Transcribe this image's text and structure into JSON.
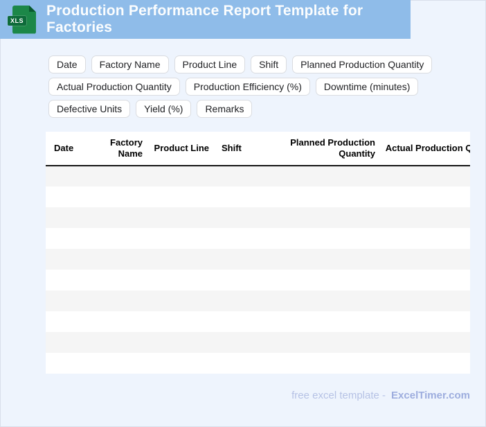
{
  "banner": {
    "title": "Production Performance Report Template for Factories",
    "icon_label": "XLS"
  },
  "chips": [
    "Date",
    "Factory Name",
    "Product Line",
    "Shift",
    "Planned Production Quantity",
    "Actual Production Quantity",
    "Production Efficiency (%)",
    "Downtime (minutes)",
    "Defective Units",
    "Yield (%)",
    "Remarks"
  ],
  "table": {
    "columns": [
      {
        "label": "Date",
        "align": "left"
      },
      {
        "label": "Factory Name",
        "align": "right"
      },
      {
        "label": "Product Line",
        "align": "right"
      },
      {
        "label": "Shift",
        "align": "left"
      },
      {
        "label": "Planned Production Quantity",
        "align": "right"
      },
      {
        "label": "Actual Production Quantity",
        "align": "right"
      }
    ],
    "empty_row_count": 10,
    "cells": []
  },
  "footer": {
    "prefix": "free excel template -",
    "brand": "ExcelTimer.com"
  },
  "colors": {
    "banner_bg": "#8fbce9",
    "page_bg": "#eef4fd",
    "row_stripe": "#f5f5f5",
    "chip_border": "#dadce0",
    "header_border": "#141414",
    "icon_green": "#1c8748",
    "icon_fold": "#0a5a2f",
    "icon_band": "#0e6b3a",
    "footer_text": "#b6c2e5",
    "footer_brand": "#9dadde",
    "title_color": "#fbfdfe"
  }
}
